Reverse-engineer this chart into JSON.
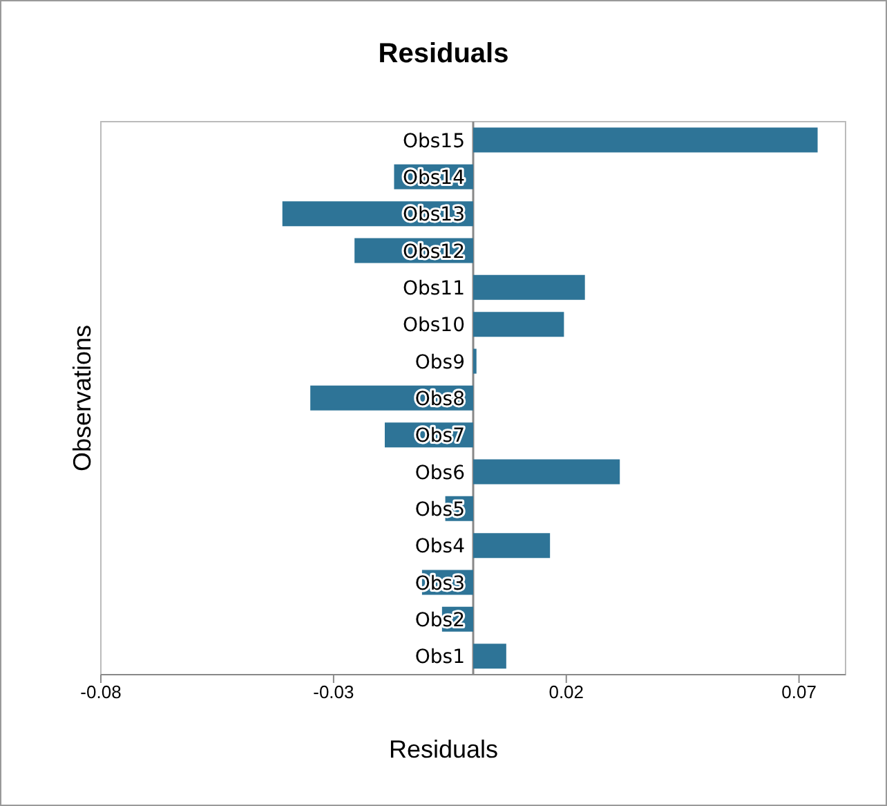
{
  "chart_data": {
    "type": "bar",
    "orientation": "horizontal",
    "title": "Residuals",
    "xlabel": "Residuals",
    "ylabel": "Observations",
    "categories": [
      "Obs15",
      "Obs14",
      "Obs13",
      "Obs12",
      "Obs11",
      "Obs10",
      "Obs9",
      "Obs8",
      "Obs7",
      "Obs6",
      "Obs5",
      "Obs4",
      "Obs3",
      "Obs2",
      "Obs1"
    ],
    "values": [
      0.074,
      -0.017,
      -0.041,
      -0.0255,
      0.024,
      0.0195,
      0.0007,
      -0.035,
      -0.019,
      0.0315,
      -0.006,
      0.0165,
      -0.011,
      -0.0067,
      0.0071
    ],
    "color": "#2e7497",
    "xlim": [
      -0.08,
      0.08
    ],
    "xticks": [
      -0.08,
      -0.03,
      0.02,
      0.07
    ],
    "grid": false,
    "legend": false
  }
}
